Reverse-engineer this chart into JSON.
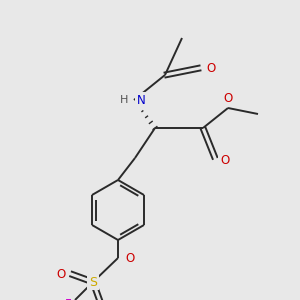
{
  "background_color": "#e8e8e8",
  "bond_color": "#2a2a2a",
  "atom_colors": {
    "N": "#0000cc",
    "O": "#cc0000",
    "S": "#ccaa00",
    "F": "#cc00cc",
    "H": "#555555",
    "C": "#2a2a2a"
  },
  "figsize": [
    3.0,
    3.0
  ],
  "dpi": 100
}
